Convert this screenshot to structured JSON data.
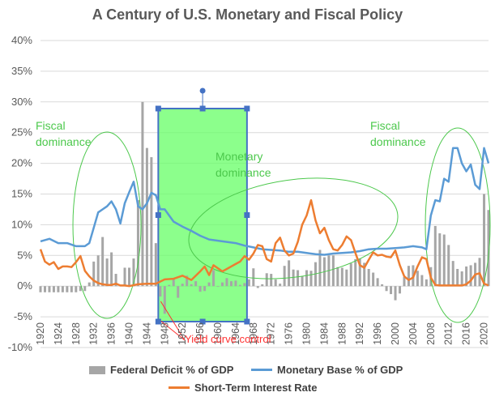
{
  "chart_data": {
    "type": "combo-bar-line",
    "title": "A Century of U.S. Monetary and Fiscal Policy",
    "xlabel": "",
    "ylabel": "",
    "ylim": [
      -10,
      40
    ],
    "yticks": [
      "-10%",
      "-5%",
      "0%",
      "5%",
      "10%",
      "15%",
      "20%",
      "25%",
      "30%",
      "35%",
      "40%"
    ],
    "x_start": 1920,
    "x_end": 2021,
    "xtick_labels": [
      "1920",
      "1924",
      "1928",
      "1932",
      "1936",
      "1940",
      "1944",
      "1948",
      "1952",
      "1956",
      "1960",
      "1964",
      "1968",
      "1972",
      "1976",
      "1980",
      "1984",
      "1988",
      "1992",
      "1996",
      "2000",
      "2004",
      "2008",
      "2012",
      "2016",
      "2020"
    ],
    "series": [
      {
        "name": "Federal Deficit % of GDP",
        "kind": "bar",
        "color": "#a6a6a6",
        "years": [
          1920,
          1921,
          1922,
          1923,
          1924,
          1925,
          1926,
          1927,
          1928,
          1929,
          1930,
          1931,
          1932,
          1933,
          1934,
          1935,
          1936,
          1937,
          1938,
          1939,
          1940,
          1941,
          1942,
          1943,
          1944,
          1945,
          1946,
          1947,
          1948,
          1949,
          1950,
          1951,
          1952,
          1953,
          1954,
          1955,
          1956,
          1957,
          1958,
          1959,
          1960,
          1961,
          1962,
          1963,
          1964,
          1965,
          1966,
          1967,
          1968,
          1969,
          1970,
          1971,
          1972,
          1973,
          1974,
          1975,
          1976,
          1977,
          1978,
          1979,
          1980,
          1981,
          1982,
          1983,
          1984,
          1985,
          1986,
          1987,
          1988,
          1989,
          1990,
          1991,
          1992,
          1993,
          1994,
          1995,
          1996,
          1997,
          1998,
          1999,
          2000,
          2001,
          2002,
          2003,
          2004,
          2005,
          2006,
          2007,
          2008,
          2009,
          2010,
          2011,
          2012,
          2013,
          2014,
          2015,
          2016,
          2017,
          2018,
          2019,
          2020,
          2021
        ],
        "values": [
          -1,
          -1,
          -1,
          -1,
          -1,
          -1,
          -1,
          -1,
          -1,
          -0.8,
          -0.8,
          0.6,
          4,
          5,
          8,
          4.5,
          5.5,
          2,
          0.1,
          3,
          3,
          4.5,
          14,
          30,
          22.5,
          21,
          7,
          -1.7,
          -4.5,
          0.2,
          1.1,
          -1.9,
          0.4,
          1.7,
          0.3,
          0.8,
          -0.9,
          -0.8,
          0.6,
          2.6,
          -0.1,
          0.6,
          1.3,
          0.8,
          0.9,
          0.2,
          0.5,
          1.1,
          2.9,
          -0.3,
          0.3,
          2.1,
          2,
          1.1,
          0.4,
          3.3,
          4.2,
          2.7,
          2.6,
          1.6,
          2.6,
          2.5,
          3.9,
          5.9,
          4.7,
          5,
          5,
          3.1,
          3,
          2.7,
          3.7,
          4.4,
          4.5,
          3.8,
          2.8,
          2.2,
          1.3,
          0.3,
          -0.8,
          -1.3,
          -2.3,
          -1.2,
          1.5,
          3.3,
          3.4,
          2.5,
          1.8,
          1.1,
          3.1,
          9.8,
          8.6,
          8.4,
          6.7,
          4.1,
          2.8,
          2.4,
          3.2,
          3.4,
          3.8,
          4.6,
          15,
          12.4
        ]
      },
      {
        "name": "Monetary Base % of GDP",
        "kind": "line",
        "color": "#5b9bd5",
        "years": [
          1920,
          1922,
          1924,
          1926,
          1928,
          1930,
          1931,
          1932,
          1933,
          1934,
          1935,
          1936,
          1937,
          1938,
          1939,
          1940,
          1941,
          1942,
          1943,
          1944,
          1945,
          1946,
          1947,
          1948,
          1950,
          1952,
          1954,
          1956,
          1958,
          1960,
          1962,
          1964,
          1966,
          1968,
          1970,
          1972,
          1974,
          1976,
          1978,
          1980,
          1982,
          1984,
          1986,
          1988,
          1990,
          1992,
          1994,
          1996,
          1998,
          2000,
          2002,
          2004,
          2006,
          2007,
          2008,
          2009,
          2010,
          2011,
          2012,
          2013,
          2014,
          2015,
          2016,
          2017,
          2018,
          2019,
          2020,
          2021
        ],
        "values": [
          7.3,
          7.7,
          7,
          7,
          6.5,
          6.5,
          7,
          9.5,
          12,
          12.5,
          13,
          13.8,
          12.5,
          10.2,
          13.5,
          15.3,
          17,
          13,
          12.5,
          13.5,
          15.2,
          14.8,
          12.5,
          12.5,
          10.5,
          9.7,
          9,
          8.2,
          7.6,
          7.4,
          7.2,
          7,
          6.6,
          6.3,
          6,
          5.9,
          5.8,
          5.6,
          5.6,
          5.4,
          5.2,
          5.1,
          5.3,
          5.4,
          5.5,
          5.7,
          6,
          6.1,
          6.1,
          6.2,
          6.3,
          6.5,
          6.3,
          6,
          11.5,
          14,
          13.8,
          17.5,
          17,
          22.5,
          22.5,
          20,
          18.7,
          19.8,
          16.5,
          15.8,
          22.5,
          20
        ]
      },
      {
        "name": "Short-Term Interest Rate",
        "kind": "line",
        "color": "#ed7d31",
        "years": [
          1920,
          1921,
          1922,
          1923,
          1924,
          1925,
          1926,
          1927,
          1928,
          1929,
          1930,
          1931,
          1932,
          1933,
          1934,
          1935,
          1936,
          1937,
          1938,
          1939,
          1940,
          1942,
          1944,
          1946,
          1948,
          1950,
          1952,
          1954,
          1956,
          1957,
          1958,
          1959,
          1960,
          1961,
          1962,
          1963,
          1964,
          1965,
          1966,
          1967,
          1968,
          1969,
          1970,
          1971,
          1972,
          1973,
          1974,
          1975,
          1976,
          1977,
          1978,
          1979,
          1980,
          1981,
          1982,
          1983,
          1984,
          1985,
          1986,
          1987,
          1988,
          1989,
          1990,
          1991,
          1992,
          1993,
          1994,
          1995,
          1996,
          1997,
          1998,
          1999,
          2000,
          2001,
          2002,
          2003,
          2004,
          2005,
          2006,
          2007,
          2008,
          2009,
          2010,
          2012,
          2014,
          2015,
          2016,
          2017,
          2018,
          2019,
          2020,
          2021
        ],
        "values": [
          6,
          4,
          3.5,
          3.9,
          2.8,
          3.2,
          3.2,
          3.1,
          3.9,
          4.9,
          2.5,
          1.6,
          0.9,
          0.5,
          0.3,
          0.2,
          0.2,
          0.4,
          0.1,
          0.1,
          0,
          0.3,
          0.4,
          0.4,
          1.1,
          1.2,
          1.7,
          1,
          2.4,
          3.2,
          1.8,
          3.4,
          2.9,
          2.4,
          2.8,
          3.2,
          3.6,
          4,
          4.9,
          4.3,
          5.3,
          6.7,
          6.5,
          4.4,
          4,
          7,
          7.9,
          5.8,
          5,
          5.3,
          7.2,
          10,
          11.5,
          14,
          10.7,
          8.6,
          9.5,
          7.5,
          6,
          5.8,
          6.7,
          8.1,
          7.5,
          5.4,
          3.4,
          3,
          4.3,
          5.5,
          5,
          5.1,
          4.8,
          4.7,
          5.8,
          3.4,
          1.6,
          1,
          1.4,
          3.2,
          4.7,
          4.4,
          1.4,
          0.2,
          0.1,
          0.1,
          0.1,
          0.1,
          0.3,
          0.9,
          1.9,
          2.1,
          0.4,
          0.1
        ]
      }
    ],
    "annotations": [
      {
        "text": "Fiscal\ndominance",
        "color": "#4cc84c"
      },
      {
        "text": "Monetary\ndominance",
        "color": "#4cc84c"
      },
      {
        "text": "Fiscal\ndominance",
        "color": "#4cc84c"
      },
      {
        "text": "Yield curve control",
        "color": "#ff3030"
      }
    ],
    "highlight": {
      "from": 1946,
      "to": 1966,
      "color": "#66ff66"
    }
  }
}
